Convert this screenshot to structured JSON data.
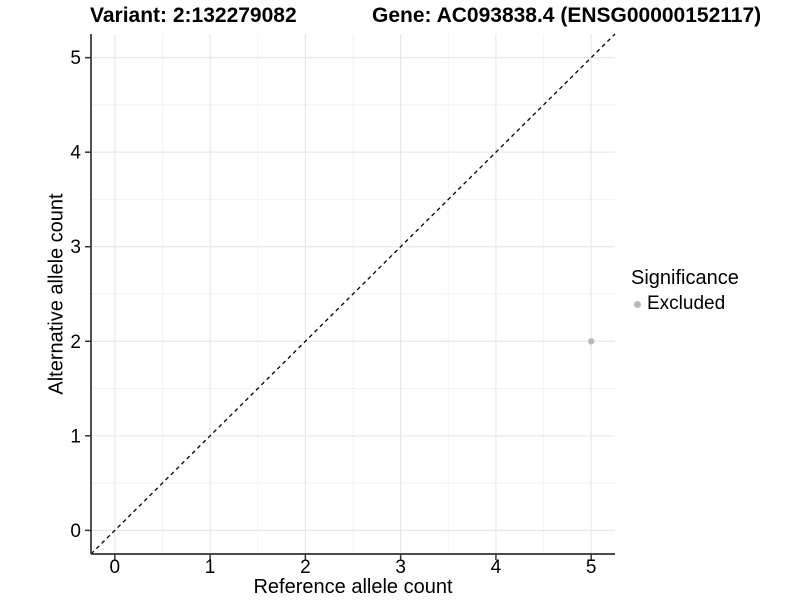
{
  "chart_data": {
    "type": "scatter",
    "title_left": "Variant: 2:132279082",
    "title_right": "Gene: AC093838.4 (ENSG00000152117)",
    "xlabel": "Reference allele count",
    "ylabel": "Alternative allele count",
    "xlim": [
      -0.25,
      5.25
    ],
    "ylim": [
      -0.25,
      5.25
    ],
    "x_ticks": [
      0,
      1,
      2,
      3,
      4,
      5
    ],
    "y_ticks": [
      0,
      1,
      2,
      3,
      4,
      5
    ],
    "x_minor_ticks": [
      0.5,
      1.5,
      2.5,
      3.5,
      4.5
    ],
    "y_minor_ticks": [
      0.5,
      1.5,
      2.5,
      3.5,
      4.5
    ],
    "grid": true,
    "series": [
      {
        "name": "Excluded",
        "color": "#b9b9b9",
        "points": [
          {
            "x": 5,
            "y": 2
          }
        ],
        "point_radius": 3.2
      }
    ],
    "reference_line": {
      "type": "identity",
      "style": "dashed",
      "color": "#000000",
      "dash": [
        4,
        3.5
      ],
      "from": [
        -0.25,
        -0.25
      ],
      "to": [
        5.25,
        5.25
      ]
    },
    "legend": {
      "title": "Significance",
      "position": "right",
      "items": [
        {
          "label": "Excluded",
          "color": "#b9b9b9",
          "marker": "circle"
        }
      ]
    }
  },
  "colors": {
    "grid_major": "#e8e8e8",
    "grid_minor": "#f4f4f4",
    "axis_line": "#333333",
    "tick_label": "#000000",
    "background": "#ffffff"
  }
}
